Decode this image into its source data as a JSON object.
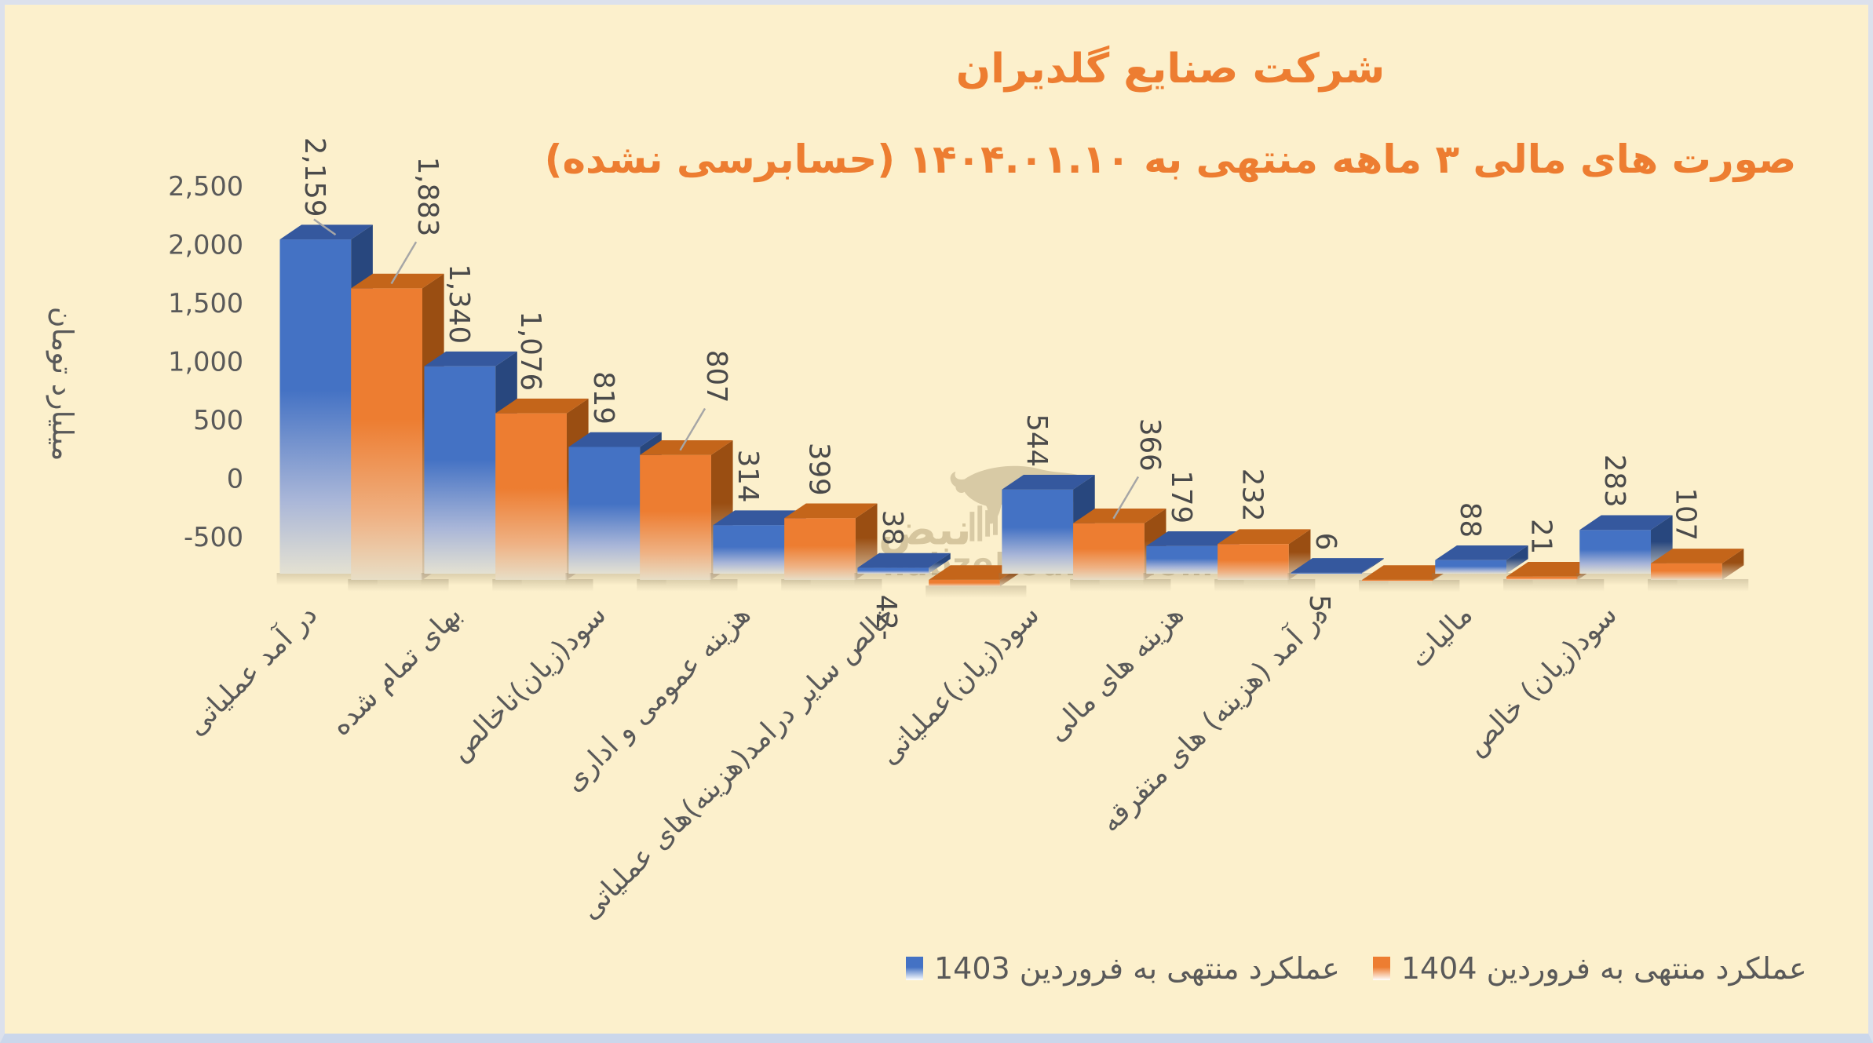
{
  "title": "شرکت صنایع گلدیران",
  "subtitle": "صورت های مالی ۳ ماهه منتهی به ۱۴۰۴.۰۱.۱۰ (حسابرسی نشده)",
  "colors": {
    "background": "#FCF0CC",
    "frame_border": "#DCE1EC",
    "title_orange": "#ED7D31",
    "series_blue": "#4472C4",
    "series_orange": "#ED7D31",
    "axis_text": "#595959",
    "value_label_text": "#4A4A4A",
    "leader_line": "#A6A6A6",
    "watermark_tan": "#D7C8A3"
  },
  "watermark": {
    "logo_text": "نبض",
    "site": "nabzebourse.com",
    "bull_icon": "bull-silhouette"
  },
  "legend": {
    "items": [
      {
        "label": "عملکرد منتهی به فروردین 1403",
        "color": "#4472C4"
      },
      {
        "label": "عملکرد منتهی به فروردین 1404",
        "color": "#ED7D31"
      }
    ]
  },
  "chart_data": {
    "type": "bar",
    "style": "3d-column-clustered",
    "title": "شرکت صنایع گلدیران",
    "subtitle": "صورت های مالی ۳ ماهه منتهی به ۱۴۰۴.۰۱.۱۰ (حسابرسی نشده)",
    "ylabel": "میلیارد تومان",
    "xlabel": "",
    "ylim": [
      -500,
      2500
    ],
    "grid": false,
    "legend_position": "bottom",
    "y_ticks": {
      "labels": [
        "2,500",
        "2,000",
        "1,500",
        "1,000",
        "500",
        "0",
        "-500"
      ],
      "values": [
        2500,
        2000,
        1500,
        1000,
        500,
        0,
        -500
      ]
    },
    "categories": [
      "در آمد عملیاتی",
      "بهای تمام شده",
      "سود(زیان)ناخالص",
      "هزینه عمومی و اداری",
      "خالص سایر درامد(هزینه)های عملیاتی",
      "سود(زیان)عملیاتی",
      "هزینه های مالی",
      "در آمد (هزینه) های متفرقه",
      "مالیات",
      "سود(زیان) خالص"
    ],
    "series": [
      {
        "name": "عملکرد منتهی به فروردین 1403",
        "color": "#4472C4",
        "values": [
          2159,
          1340,
          819,
          314,
          38,
          544,
          179,
          6,
          88,
          283
        ],
        "labels": [
          "2,159",
          "1,340",
          "819",
          "314",
          "38",
          "544",
          "179",
          "6",
          "88",
          "283"
        ],
        "leader_lines": [
          true,
          false,
          false,
          false,
          false,
          false,
          false,
          false,
          false,
          false
        ]
      },
      {
        "name": "عملکرد منتهی به فروردین 1404",
        "color": "#ED7D31",
        "values": [
          1883,
          1076,
          807,
          399,
          -42,
          366,
          232,
          -5,
          21,
          107
        ],
        "labels": [
          "1,883",
          "1,076",
          "807",
          "399",
          "42-",
          "366",
          "232",
          "5-",
          "21",
          "107"
        ],
        "leader_lines": [
          true,
          false,
          true,
          false,
          false,
          true,
          false,
          false,
          false,
          false
        ]
      }
    ]
  }
}
